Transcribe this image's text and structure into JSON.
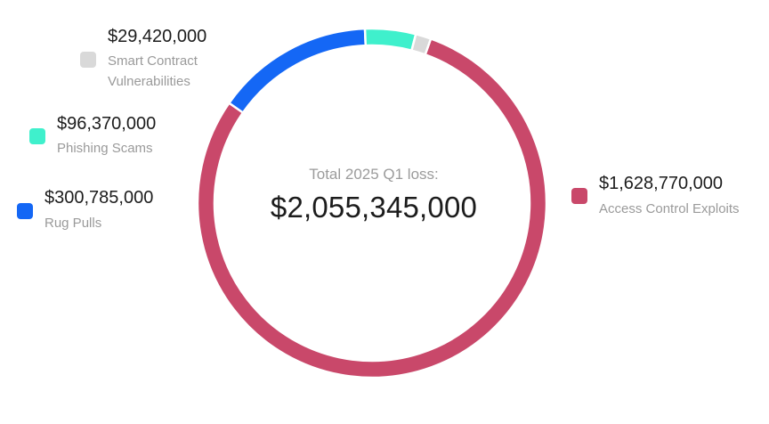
{
  "chart_data": {
    "type": "pie",
    "center_label": "Total 2025 Q1 loss:",
    "center_value": "$2,055,345,000",
    "series": [
      {
        "name": "Access Control Exploits",
        "value": 1628770000,
        "value_label": "$1,628,770,000",
        "color": "#c9486a"
      },
      {
        "name": "Rug Pulls",
        "value": 300785000,
        "value_label": "$300,785,000",
        "color": "#1467f5"
      },
      {
        "name": "Phishing Scams",
        "value": 96370000,
        "value_label": "$96,370,000",
        "color": "#3ff0cc"
      },
      {
        "name": "Smart Contract Vulnerabilities",
        "value": 29420000,
        "value_label": "$29,420,000",
        "label_lines": [
          "Smart Contract",
          "Vulnerabilities"
        ],
        "color": "#d9d9d9"
      }
    ]
  }
}
